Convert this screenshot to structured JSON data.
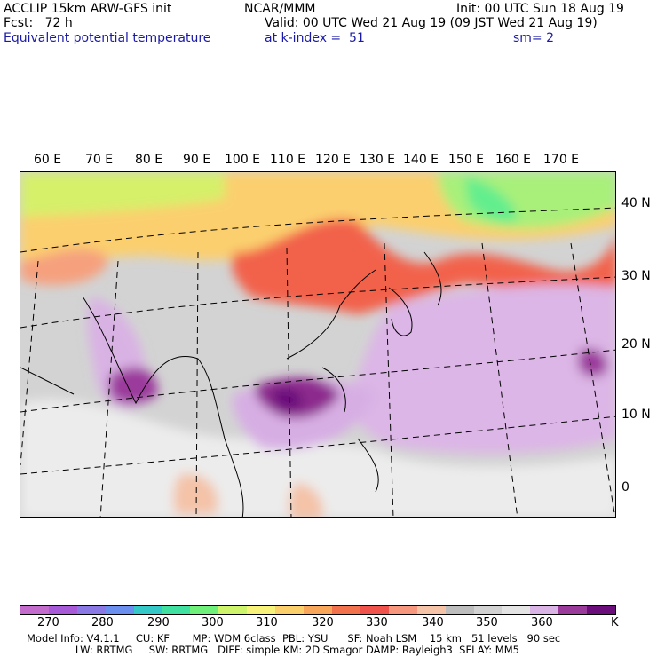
{
  "header": {
    "left1": "ACCLIP 15km ARW-GFS init",
    "left2": "Fcst:   72 h",
    "left3": "Equivalent potential temperature",
    "center1": "NCAR/MMM",
    "center2": "Valid: 00 UTC Wed 21 Aug 19 (09 JST Wed 21 Aug 19)",
    "center3": "at k-index =  51",
    "right1": "Init: 00 UTC Sun 18 Aug 19",
    "right3": "sm= 2"
  },
  "map": {
    "lon_labels": [
      "60 E",
      "70 E",
      "80 E",
      "90 E",
      "100 E",
      "110 E",
      "120 E",
      "130 E",
      "140 E",
      "150 E",
      "160 E",
      "170 E"
    ],
    "lat_labels": [
      "40 N",
      "30 N",
      "20 N",
      "10 N",
      "0"
    ]
  },
  "colorbar": {
    "colors": [
      "#c36ccd",
      "#a65ad7",
      "#8a78e5",
      "#6a8fef",
      "#34c8c8",
      "#40e0a0",
      "#6ff07a",
      "#cdf46b",
      "#f7f27a",
      "#fbd06c",
      "#f8a65a",
      "#f2724e",
      "#f0534b",
      "#f6977e",
      "#f4c3a8",
      "#bdbdbd",
      "#d2d2d2",
      "#e4e4e4",
      "#d9b4e4",
      "#9a3a9a",
      "#6b0d7a"
    ],
    "ticks": [
      "270",
      "280",
      "290",
      "300",
      "310",
      "320",
      "330",
      "340",
      "350",
      "360"
    ],
    "unit": "K"
  },
  "footer": {
    "line1": "Model Info: V4.1.1     CU: KF       MP: WDM 6class  PBL: YSU      SF: Noah LSM    15 km   51 levels   90 sec",
    "line2": "               LW: RRTMG     SW: RRTMG   DIFF: simple KM: 2D Smagor DAMP: Rayleigh3  SFLAY: MM5"
  }
}
